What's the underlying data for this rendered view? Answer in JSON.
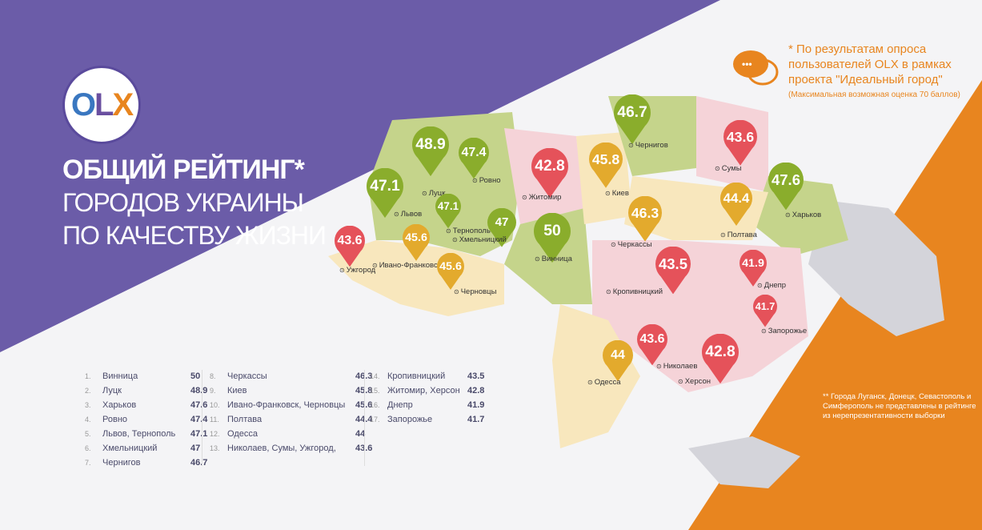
{
  "logo": {
    "text": "OLX",
    "o": "O",
    "l": "L",
    "x": "X"
  },
  "title": {
    "line1": "ОБЩИЙ РЕЙТИНГ*",
    "line2": "ГОРОДОВ УКРАИНЫ",
    "line3": "ПО КАЧЕСТВУ ЖИЗНИ"
  },
  "note": {
    "line1": "* По результатам опроса",
    "line2": "пользователей OLX в рамках",
    "line3": "проекта \"Идеальный город\"",
    "small": "(Максимальная возможная оценка 70 баллов)",
    "icon": "chat-bubbles-icon"
  },
  "note2": "** Города Луганск, Донецк, Севастополь и Симферополь не представлены в рейтинге из нерепрезентативности выборки",
  "colors": {
    "purple": "#6b5ca8",
    "orange": "#e8851f",
    "green": "#8aad2c",
    "yellow": "#e3aa2d",
    "red": "#e5525a",
    "region_green": "#c5d48b",
    "region_pink": "#f5d3d8",
    "region_yellow": "#f8e7bd",
    "region_gray": "#d4d4da"
  },
  "ranking": [
    [
      {
        "n": "1.",
        "city": "Винница",
        "v": "50"
      },
      {
        "n": "2.",
        "city": "Луцк",
        "v": "48.9"
      },
      {
        "n": "3.",
        "city": "Харьков",
        "v": "47.6"
      },
      {
        "n": "4.",
        "city": "Ровно",
        "v": "47.4"
      },
      {
        "n": "5.",
        "city": "Львов, Тернополь",
        "v": "47.1"
      },
      {
        "n": "6.",
        "city": "Хмельницкий",
        "v": "47"
      },
      {
        "n": "7.",
        "city": "Чернигов",
        "v": "46.7"
      }
    ],
    [
      {
        "n": "8.",
        "city": "Черкассы",
        "v": "46.3"
      },
      {
        "n": "9.",
        "city": "Киев",
        "v": "45.8"
      },
      {
        "n": "10.",
        "city": "Ивано-Франковск, Черновцы",
        "v": "45.6"
      },
      {
        "n": "11.",
        "city": "Полтава",
        "v": "44.4"
      },
      {
        "n": "12.",
        "city": "Одесса",
        "v": "44"
      },
      {
        "n": "13.",
        "city": "Николаев, Сумы, Ужгород,",
        "v": "43.6"
      }
    ],
    [
      {
        "n": "14.",
        "city": "Кропивницкий",
        "v": "43.5"
      },
      {
        "n": "15.",
        "city": "Житомир, Херсон",
        "v": "42.8"
      },
      {
        "n": "16.",
        "city": "Днепр",
        "v": "41.9"
      },
      {
        "n": "17.",
        "city": "Запорожье",
        "v": "41.7"
      }
    ]
  ],
  "pins": [
    {
      "city": "Луцк",
      "value": "48.9",
      "color": "green"
    },
    {
      "city": "Ровно",
      "value": "47.4",
      "color": "green"
    },
    {
      "city": "Львов",
      "value": "47.1",
      "color": "green"
    },
    {
      "city": "Тернополь",
      "value": "47.1",
      "color": "green"
    },
    {
      "city": "Хмельницкий",
      "value": "47",
      "color": "green"
    },
    {
      "city": "Ужгород",
      "value": "43.6",
      "color": "red"
    },
    {
      "city": "Ивано-Франковск",
      "value": "45.6",
      "color": "yellow"
    },
    {
      "city": "Черновцы",
      "value": "45.6",
      "color": "yellow"
    },
    {
      "city": "Житомир",
      "value": "42.8",
      "color": "red"
    },
    {
      "city": "Винница",
      "value": "50",
      "color": "green"
    },
    {
      "city": "Киев",
      "value": "45.8",
      "color": "yellow"
    },
    {
      "city": "Чернигов",
      "value": "46.7",
      "color": "green"
    },
    {
      "city": "Сумы",
      "value": "43.6",
      "color": "red"
    },
    {
      "city": "Харьков",
      "value": "47.6",
      "color": "green"
    },
    {
      "city": "Полтава",
      "value": "44.4",
      "color": "yellow"
    },
    {
      "city": "Черкассы",
      "value": "46.3",
      "color": "yellow"
    },
    {
      "city": "Кропивницкий",
      "value": "43.5",
      "color": "red"
    },
    {
      "city": "Днепр",
      "value": "41.9",
      "color": "red"
    },
    {
      "city": "Запорожье",
      "value": "41.7",
      "color": "red"
    },
    {
      "city": "Николаев",
      "value": "43.6",
      "color": "red"
    },
    {
      "city": "Херсон",
      "value": "42.8",
      "color": "red"
    },
    {
      "city": "Одесса",
      "value": "44",
      "color": "yellow"
    }
  ]
}
